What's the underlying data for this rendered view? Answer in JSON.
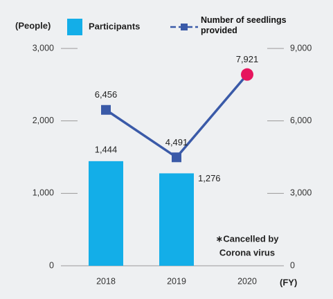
{
  "chart_data": {
    "type": "combo",
    "y_label": "(People)",
    "x_label": "(FY)",
    "categories": [
      "2018",
      "2019",
      "2020"
    ],
    "series": [
      {
        "name": "Participants",
        "type": "bar",
        "color": "#13aee8",
        "values": [
          1444,
          1276,
          null
        ],
        "value_labels": [
          "1,444",
          "1,276",
          null
        ]
      },
      {
        "name": "Number of seedlings provided",
        "type": "line",
        "axis": "y2",
        "color": "#3a5aa8",
        "point_colors": [
          "#3a5aa8",
          "#3a5aa8",
          "#e6155e"
        ],
        "values": [
          6456,
          4491,
          7921
        ],
        "value_labels": [
          "6,456",
          "4,491",
          "7,921"
        ]
      }
    ],
    "ylim": [
      0,
      3000
    ],
    "yticks": [
      0,
      {
        "value": 1000,
        "label": "1,000"
      },
      {
        "value": 2000,
        "label": "2,000"
      },
      {
        "value": 3000,
        "label": "3,000"
      }
    ],
    "y2lim": [
      0,
      9000
    ],
    "y2ticks": [
      0,
      {
        "value": 3000,
        "label": "3,000"
      },
      {
        "value": 6000,
        "label": "6,000"
      },
      {
        "value": 9000,
        "label": "9,000"
      }
    ],
    "annotation": [
      "∗Cancelled by",
      "Corona virus"
    ]
  }
}
